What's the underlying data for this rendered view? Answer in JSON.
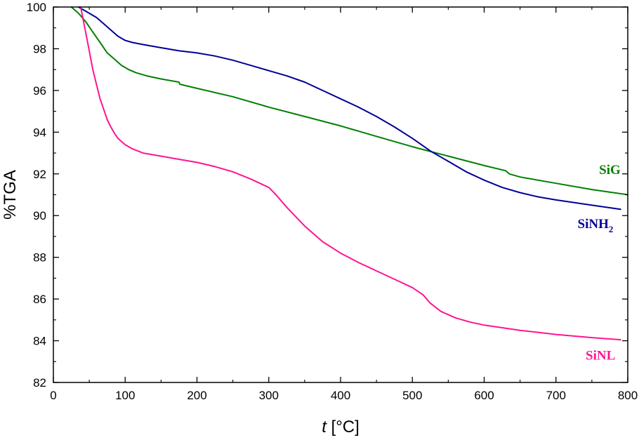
{
  "chart_data": {
    "type": "line",
    "xlabel": {
      "italic": "t",
      "rest": " [°C]"
    },
    "ylabel": "%TGA",
    "xlim": [
      0,
      800
    ],
    "ylim": [
      82,
      100
    ],
    "xticks": [
      0,
      100,
      200,
      300,
      400,
      500,
      600,
      700,
      800
    ],
    "yticks": [
      82,
      84,
      86,
      88,
      90,
      92,
      94,
      96,
      98,
      100
    ],
    "grid": false,
    "series": [
      {
        "name": "SiG",
        "label_main": "SiG",
        "label_sub": "",
        "color": "#008000",
        "label_at": [
          775,
          92.0
        ],
        "x": [
          25,
          35,
          45,
          55,
          65,
          75,
          85,
          95,
          105,
          115,
          130,
          150,
          175,
          176,
          200,
          250,
          300,
          350,
          400,
          450,
          500,
          550,
          600,
          630,
          635,
          650,
          700,
          750,
          800
        ],
        "y": [
          100,
          99.7,
          99.3,
          98.8,
          98.3,
          97.8,
          97.5,
          97.2,
          97.0,
          96.85,
          96.7,
          96.55,
          96.4,
          96.3,
          96.1,
          95.7,
          95.2,
          94.75,
          94.3,
          93.8,
          93.3,
          92.85,
          92.4,
          92.15,
          92.0,
          91.85,
          91.55,
          91.25,
          91.0
        ]
      },
      {
        "name": "SiNH2",
        "label_main": "SiNH",
        "label_sub": "2",
        "color": "#000099",
        "label_at": [
          755,
          89.4
        ],
        "x": [
          35,
          50,
          60,
          70,
          80,
          90,
          100,
          110,
          125,
          150,
          175,
          200,
          225,
          250,
          275,
          300,
          325,
          350,
          375,
          400,
          425,
          450,
          475,
          500,
          525,
          550,
          575,
          600,
          625,
          650,
          675,
          700,
          750,
          790
        ],
        "y": [
          100,
          99.7,
          99.5,
          99.2,
          98.9,
          98.6,
          98.4,
          98.3,
          98.2,
          98.05,
          97.9,
          97.8,
          97.65,
          97.45,
          97.2,
          96.95,
          96.7,
          96.4,
          96.0,
          95.6,
          95.2,
          94.75,
          94.25,
          93.7,
          93.1,
          92.6,
          92.1,
          91.7,
          91.35,
          91.1,
          90.9,
          90.75,
          90.5,
          90.3
        ]
      },
      {
        "name": "SiNL",
        "label_main": "SiNL",
        "label_sub": "",
        "color": "#ff1493",
        "label_at": [
          762,
          83.1
        ],
        "x": [
          38,
          45,
          50,
          55,
          60,
          65,
          70,
          75,
          80,
          85,
          90,
          100,
          110,
          125,
          150,
          175,
          200,
          225,
          250,
          275,
          300,
          310,
          325,
          350,
          375,
          400,
          425,
          450,
          475,
          500,
          515,
          525,
          540,
          560,
          580,
          600,
          650,
          700,
          750,
          790
        ],
        "y": [
          100,
          98.8,
          97.9,
          97.0,
          96.3,
          95.6,
          95.1,
          94.6,
          94.25,
          93.95,
          93.7,
          93.4,
          93.2,
          93.0,
          92.85,
          92.7,
          92.55,
          92.35,
          92.1,
          91.75,
          91.35,
          91.0,
          90.4,
          89.5,
          88.75,
          88.2,
          87.75,
          87.35,
          86.95,
          86.55,
          86.2,
          85.8,
          85.4,
          85.1,
          84.9,
          84.75,
          84.5,
          84.3,
          84.15,
          84.05
        ]
      }
    ]
  }
}
